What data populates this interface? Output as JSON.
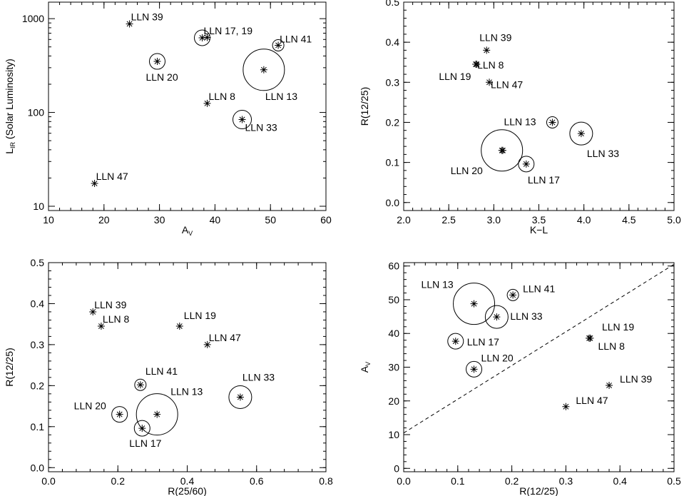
{
  "chart_data": [
    {
      "type": "scatter",
      "xlabel": "A",
      "xlabel_sub": "V",
      "ylabel": "L",
      "ylabel_sub": "IR",
      "ylabel_suffix": " (Solar Luminosity)",
      "xscale": "linear",
      "yscale": "log",
      "xlim": [
        10,
        60
      ],
      "ylim": [
        9,
        1500
      ],
      "xticks": [
        10,
        20,
        30,
        40,
        50,
        60
      ],
      "yticks": [
        10,
        100,
        1000
      ],
      "points": [
        {
          "x": 24.6,
          "y": 880,
          "circle": 0,
          "label": "LLN 39",
          "lx": 2,
          "ly": -5
        },
        {
          "x": 37.7,
          "y": 625,
          "circle": 11,
          "label": "LLN 17, 19",
          "lx": 2,
          "ly": -5
        },
        {
          "x": 38.6,
          "y": 630,
          "circle": 0
        },
        {
          "x": 51.4,
          "y": 520,
          "circle": 8,
          "label": "LLN 41",
          "lx": 2,
          "ly": -4
        },
        {
          "x": 29.6,
          "y": 350,
          "circle": 11,
          "label": "LLN 20",
          "lx": -16,
          "ly": 27
        },
        {
          "x": 48.8,
          "y": 285,
          "circle": 29,
          "label": "LLN 13",
          "lx": 2,
          "ly": 42
        },
        {
          "x": 38.6,
          "y": 125,
          "circle": 0,
          "label": "LLN 8",
          "lx": 2,
          "ly": -5
        },
        {
          "x": 44.9,
          "y": 84,
          "circle": 13,
          "label": "LLN 33",
          "lx": 4,
          "ly": 16
        },
        {
          "x": 18.3,
          "y": 17.5,
          "circle": 0,
          "label": "LLN 47",
          "lx": 2,
          "ly": -5
        }
      ]
    },
    {
      "type": "scatter",
      "xlabel": "K−L",
      "ylabel": "R(12/25)",
      "xscale": "linear",
      "yscale": "linear",
      "xlim": [
        2.0,
        5.0
      ],
      "ylim": [
        -0.02,
        0.5
      ],
      "xticks": [
        "2.0",
        "2.5",
        "3.0",
        "3.5",
        "4.0",
        "4.5",
        "5.0"
      ],
      "yticks": [
        "0.0",
        "0.1",
        "0.2",
        "0.3",
        "0.4",
        "0.5"
      ],
      "points": [
        {
          "x": 2.92,
          "y": 0.38,
          "circle": 0,
          "label": "LLN 39",
          "lx": -10,
          "ly": -13
        },
        {
          "x": 2.8,
          "y": 0.345,
          "circle": 0,
          "label": "LLN 8",
          "lx": 2,
          "ly": 6
        },
        {
          "x": 2.81,
          "y": 0.345,
          "circle": 0,
          "label": "LLN 19",
          "lx": -53,
          "ly": 22
        },
        {
          "x": 2.95,
          "y": 0.3,
          "circle": 0,
          "label": "LLN 47",
          "lx": 2,
          "ly": 8
        },
        {
          "x": 3.65,
          "y": 0.2,
          "circle": 8,
          "label": "LLN 13",
          "lx": -68,
          "ly": 4
        },
        {
          "x": 3.97,
          "y": 0.172,
          "circle": 16,
          "label": "LLN 33",
          "lx": 8,
          "ly": 33
        },
        {
          "x": 3.09,
          "y": 0.13,
          "circle": 29,
          "label": "LLN 20",
          "lx": -72,
          "ly": 33
        },
        {
          "x": 3.1,
          "y": 0.13,
          "circle": 0
        },
        {
          "x": 3.36,
          "y": 0.096,
          "circle": 11,
          "label": "LLN 17",
          "lx": 2,
          "ly": 27
        }
      ]
    },
    {
      "type": "scatter",
      "xlabel": "R(25/60)",
      "ylabel": "R(12/25)",
      "xscale": "linear",
      "yscale": "linear",
      "xlim": [
        0.0,
        0.8
      ],
      "ylim": [
        -0.01,
        0.5
      ],
      "xticks": [
        "0.0",
        "0.2",
        "0.4",
        "0.6",
        "0.8"
      ],
      "yticks": [
        "0.0",
        "0.1",
        "0.2",
        "0.3",
        "0.4",
        "0.5"
      ],
      "points": [
        {
          "x": 0.128,
          "y": 0.38,
          "circle": 0,
          "label": "LLN 39",
          "lx": 2,
          "ly": -5
        },
        {
          "x": 0.152,
          "y": 0.345,
          "circle": 0,
          "label": "LLN 8",
          "lx": 2,
          "ly": -5
        },
        {
          "x": 0.378,
          "y": 0.345,
          "circle": 0,
          "label": "LLN 19",
          "lx": 6,
          "ly": -10
        },
        {
          "x": 0.458,
          "y": 0.3,
          "circle": 0,
          "label": "LLN 47",
          "lx": 2,
          "ly": -5
        },
        {
          "x": 0.265,
          "y": 0.202,
          "circle": 8,
          "label": "LLN 41",
          "lx": 7,
          "ly": -14
        },
        {
          "x": 0.553,
          "y": 0.172,
          "circle": 16,
          "label": "LLN 33",
          "lx": 3,
          "ly": -23
        },
        {
          "x": 0.313,
          "y": 0.13,
          "circle": 29,
          "label": "LLN 13",
          "lx": 19,
          "ly": -27
        },
        {
          "x": 0.205,
          "y": 0.13,
          "circle": 11,
          "label": "LLN 20",
          "lx": -64,
          "ly": -7
        },
        {
          "x": 0.27,
          "y": 0.096,
          "circle": 11,
          "label": "LLN 17",
          "lx": -18,
          "ly": 26
        }
      ]
    },
    {
      "type": "scatter",
      "xlabel": "R(12/25)",
      "ylabel": "A",
      "ylabel_sub": "V",
      "xscale": "linear",
      "yscale": "linear",
      "xlim": [
        0.0,
        0.5
      ],
      "ylim": [
        -1,
        61
      ],
      "xticks": [
        "0.0",
        "0.1",
        "0.2",
        "0.3",
        "0.4",
        "0.5"
      ],
      "yticks": [
        "0",
        "10",
        "20",
        "30",
        "40",
        "50",
        "60"
      ],
      "reference_line": {
        "style": "dashed",
        "x": [
          0.0,
          0.5
        ],
        "y": [
          10.5,
          60.5
        ]
      },
      "points": [
        {
          "x": 0.13,
          "y": 48.8,
          "circle": 29,
          "label": "LLN 13",
          "lx": -74,
          "ly": -22
        },
        {
          "x": 0.202,
          "y": 51.4,
          "circle": 8,
          "label": "LLN 41",
          "lx": 14,
          "ly": -4
        },
        {
          "x": 0.172,
          "y": 44.9,
          "circle": 16,
          "label": "LLN 33",
          "lx": 19,
          "ly": 4
        },
        {
          "x": 0.343,
          "y": 38.6,
          "circle": 0,
          "label": "LLN 19",
          "lx": 18,
          "ly": -11
        },
        {
          "x": 0.345,
          "y": 38.6,
          "circle": 0,
          "label": "LLN 8",
          "lx": 11,
          "ly": 16
        },
        {
          "x": 0.096,
          "y": 37.7,
          "circle": 11,
          "label": "LLN 17",
          "lx": 16,
          "ly": 6
        },
        {
          "x": 0.13,
          "y": 29.4,
          "circle": 11,
          "label": "LLN 20",
          "lx": 10,
          "ly": -11
        },
        {
          "x": 0.38,
          "y": 24.6,
          "circle": 0,
          "label": "LLN 39",
          "lx": 15,
          "ly": -4
        },
        {
          "x": 0.3,
          "y": 18.3,
          "circle": 0,
          "label": "LLN 47",
          "lx": 14,
          "ly": -4
        }
      ]
    }
  ]
}
